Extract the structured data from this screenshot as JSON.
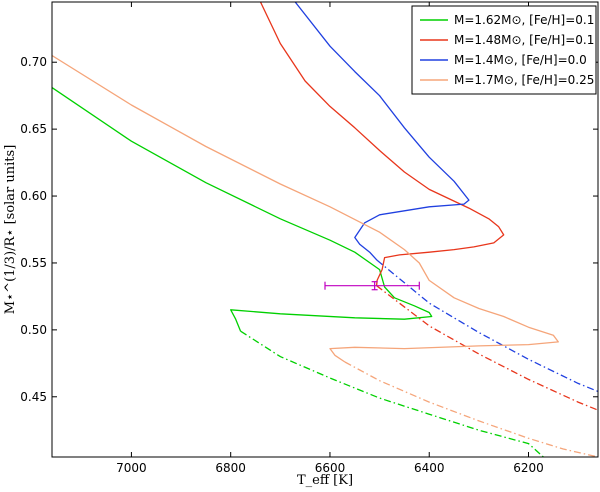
{
  "chart_data": {
    "type": "line",
    "xlabel": "T_eff [K]",
    "ylabel": "M⋆^(1/3)/R⋆ [solar units]",
    "x_reversed": true,
    "xlim": [
      7160,
      6060
    ],
    "ylim": [
      0.405,
      0.745
    ],
    "x_ticks": [
      7000,
      6800,
      6600,
      6400,
      6200,
      6000
    ],
    "y_ticks": [
      0.45,
      0.5,
      0.55,
      0.6,
      0.65,
      0.7
    ],
    "x_tick_labels": [
      "7000",
      "6800",
      "6600",
      "6400",
      "6200",
      "6000"
    ],
    "y_tick_labels": [
      "0.45",
      "0.50",
      "0.55",
      "0.60",
      "0.65",
      "0.70"
    ],
    "legend_position": "top-right",
    "series": [
      {
        "name": "M=1.62M⊙, [Fe/H]=0.1",
        "color": "#00d000",
        "solid": [
          [
            7160,
            0.681
          ],
          [
            7000,
            0.641
          ],
          [
            6850,
            0.61
          ],
          [
            6700,
            0.583
          ],
          [
            6600,
            0.567
          ],
          [
            6550,
            0.558
          ],
          [
            6500,
            0.545
          ],
          [
            6490,
            0.532
          ],
          [
            6470,
            0.524
          ],
          [
            6430,
            0.518
          ],
          [
            6400,
            0.513
          ],
          [
            6395,
            0.51
          ],
          [
            6450,
            0.508
          ],
          [
            6550,
            0.509
          ],
          [
            6700,
            0.512
          ],
          [
            6800,
            0.515
          ],
          [
            6790,
            0.508
          ],
          [
            6780,
            0.499
          ]
        ],
        "dashdot": [
          [
            6780,
            0.499
          ],
          [
            6700,
            0.48
          ],
          [
            6600,
            0.464
          ],
          [
            6500,
            0.449
          ],
          [
            6400,
            0.437
          ],
          [
            6300,
            0.425
          ],
          [
            6200,
            0.415
          ],
          [
            6170,
            0.405
          ]
        ]
      },
      {
        "name": "M=1.48M⊙, [Fe/H]=0.1",
        "color": "#e8361c",
        "solid": [
          [
            6740,
            0.745
          ],
          [
            6700,
            0.714
          ],
          [
            6650,
            0.686
          ],
          [
            6600,
            0.667
          ],
          [
            6550,
            0.651
          ],
          [
            6500,
            0.634
          ],
          [
            6450,
            0.618
          ],
          [
            6400,
            0.605
          ],
          [
            6320,
            0.591
          ],
          [
            6280,
            0.583
          ],
          [
            6260,
            0.577
          ],
          [
            6250,
            0.571
          ],
          [
            6270,
            0.565
          ],
          [
            6310,
            0.562
          ],
          [
            6350,
            0.56
          ],
          [
            6400,
            0.558
          ],
          [
            6460,
            0.556
          ],
          [
            6490,
            0.554
          ],
          [
            6495,
            0.545
          ],
          [
            6505,
            0.537
          ],
          [
            6506,
            0.533
          ]
        ],
        "dashdot": [
          [
            6506,
            0.533
          ],
          [
            6400,
            0.503
          ],
          [
            6300,
            0.482
          ],
          [
            6200,
            0.463
          ],
          [
            6100,
            0.446
          ],
          [
            6000,
            0.431
          ],
          [
            6060,
            0.437
          ]
        ]
      },
      {
        "name": "M=1.4M⊙, [Fe/H]=0.0",
        "color": "#2040e0",
        "solid": [
          [
            6670,
            0.745
          ],
          [
            6600,
            0.712
          ],
          [
            6550,
            0.693
          ],
          [
            6500,
            0.675
          ],
          [
            6450,
            0.651
          ],
          [
            6400,
            0.629
          ],
          [
            6350,
            0.611
          ],
          [
            6320,
            0.597
          ],
          [
            6330,
            0.594
          ],
          [
            6400,
            0.592
          ],
          [
            6450,
            0.589
          ],
          [
            6500,
            0.586
          ],
          [
            6530,
            0.58
          ],
          [
            6550,
            0.569
          ],
          [
            6540,
            0.564
          ],
          [
            6520,
            0.558
          ],
          [
            6505,
            0.552
          ]
        ],
        "dashdot": [
          [
            6505,
            0.552
          ],
          [
            6400,
            0.52
          ],
          [
            6300,
            0.498
          ],
          [
            6200,
            0.478
          ],
          [
            6100,
            0.46
          ],
          [
            6000,
            0.445
          ],
          [
            6060,
            0.452
          ]
        ]
      },
      {
        "name": "M=1.7M⊙, [Fe/H]=0.25",
        "color": "#f5a57a",
        "solid": [
          [
            7160,
            0.705
          ],
          [
            7000,
            0.668
          ],
          [
            6850,
            0.637
          ],
          [
            6700,
            0.609
          ],
          [
            6600,
            0.592
          ],
          [
            6500,
            0.573
          ],
          [
            6450,
            0.56
          ],
          [
            6420,
            0.55
          ],
          [
            6400,
            0.537
          ],
          [
            6350,
            0.524
          ],
          [
            6300,
            0.516
          ],
          [
            6250,
            0.51
          ],
          [
            6200,
            0.502
          ],
          [
            6150,
            0.496
          ],
          [
            6140,
            0.491
          ],
          [
            6200,
            0.489
          ],
          [
            6300,
            0.488
          ],
          [
            6450,
            0.486
          ],
          [
            6550,
            0.487
          ],
          [
            6600,
            0.486
          ],
          [
            6590,
            0.481
          ],
          [
            6570,
            0.476
          ]
        ],
        "dashdot": [
          [
            6570,
            0.476
          ],
          [
            6500,
            0.462
          ],
          [
            6400,
            0.446
          ],
          [
            6300,
            0.432
          ],
          [
            6200,
            0.419
          ],
          [
            6130,
            0.411
          ],
          [
            6060,
            0.405
          ]
        ]
      }
    ],
    "error_bar": {
      "color": "#c000c0",
      "x": 6510,
      "y": 0.533,
      "xerr": [
        6610,
        6420
      ],
      "yerr": 0.003
    }
  }
}
